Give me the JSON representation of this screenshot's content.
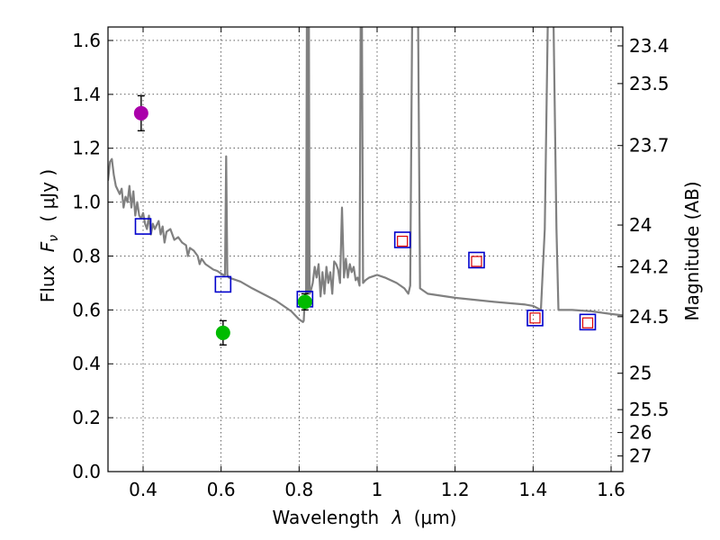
{
  "chart_data": {
    "type": "scatter",
    "xlabel_text": "Wavelength",
    "xlabel_symbol": "λ",
    "xlabel_unit": "(μm)",
    "ylabel_text": "Flux",
    "ylabel_symbol": "F",
    "ylabel_subscript": "ν",
    "ylabel_unit": "( μJy )",
    "y2label": "Magnitude (AB)",
    "xlim": [
      0.31,
      1.63
    ],
    "ylim": [
      0.0,
      1.65
    ],
    "grid": true,
    "x_ticks": [
      {
        "value": 0.4,
        "label": "0.4"
      },
      {
        "value": 0.6,
        "label": "0.6"
      },
      {
        "value": 0.8,
        "label": "0.8"
      },
      {
        "value": 1.0,
        "label": "1"
      },
      {
        "value": 1.2,
        "label": "1.2"
      },
      {
        "value": 1.4,
        "label": "1.4"
      },
      {
        "value": 1.6,
        "label": "1.6"
      }
    ],
    "y_ticks": [
      {
        "value": 0.0,
        "label": "0.0"
      },
      {
        "value": 0.2,
        "label": "0.2"
      },
      {
        "value": 0.4,
        "label": "0.4"
      },
      {
        "value": 0.6,
        "label": "0.6"
      },
      {
        "value": 0.8,
        "label": "0.8"
      },
      {
        "value": 1.0,
        "label": "1.0"
      },
      {
        "value": 1.2,
        "label": "1.2"
      },
      {
        "value": 1.4,
        "label": "1.4"
      },
      {
        "value": 1.6,
        "label": "1.6"
      }
    ],
    "y2_ticks": [
      {
        "flux": 1.58,
        "label": "23.4"
      },
      {
        "flux": 1.44,
        "label": "23.5"
      },
      {
        "flux": 1.21,
        "label": "23.7"
      },
      {
        "flux": 0.915,
        "label": "24"
      },
      {
        "flux": 0.76,
        "label": "24.2"
      },
      {
        "flux": 0.575,
        "label": "24.5"
      },
      {
        "flux": 0.365,
        "label": "25"
      },
      {
        "flux": 0.23,
        "label": "25.5"
      },
      {
        "flux": 0.145,
        "label": "26"
      },
      {
        "flux": 0.058,
        "label": "27"
      }
    ],
    "series": [
      {
        "name": "model_sed",
        "kind": "line",
        "color": "#808080",
        "points": [
          [
            0.31,
            1.08
          ],
          [
            0.315,
            1.15
          ],
          [
            0.32,
            1.16
          ],
          [
            0.325,
            1.1
          ],
          [
            0.33,
            1.06
          ],
          [
            0.34,
            1.03
          ],
          [
            0.345,
            1.05
          ],
          [
            0.35,
            0.98
          ],
          [
            0.355,
            1.02
          ],
          [
            0.36,
            1.0
          ],
          [
            0.365,
            1.06
          ],
          [
            0.37,
            0.98
          ],
          [
            0.375,
            1.04
          ],
          [
            0.38,
            0.95
          ],
          [
            0.385,
            1.0
          ],
          [
            0.39,
            0.95
          ],
          [
            0.395,
            0.94
          ],
          [
            0.4,
            0.96
          ],
          [
            0.405,
            0.92
          ],
          [
            0.41,
            0.9
          ],
          [
            0.415,
            0.95
          ],
          [
            0.42,
            0.88
          ],
          [
            0.425,
            0.92
          ],
          [
            0.43,
            0.9
          ],
          [
            0.44,
            0.93
          ],
          [
            0.445,
            0.88
          ],
          [
            0.45,
            0.91
          ],
          [
            0.455,
            0.85
          ],
          [
            0.46,
            0.89
          ],
          [
            0.47,
            0.9
          ],
          [
            0.48,
            0.86
          ],
          [
            0.49,
            0.87
          ],
          [
            0.5,
            0.85
          ],
          [
            0.51,
            0.84
          ],
          [
            0.515,
            0.8
          ],
          [
            0.52,
            0.83
          ],
          [
            0.53,
            0.82
          ],
          [
            0.54,
            0.8
          ],
          [
            0.545,
            0.77
          ],
          [
            0.55,
            0.79
          ],
          [
            0.56,
            0.77
          ],
          [
            0.57,
            0.76
          ],
          [
            0.58,
            0.75
          ],
          [
            0.59,
            0.745
          ],
          [
            0.6,
            0.735
          ],
          [
            0.605,
            0.73
          ],
          [
            0.61,
            0.73
          ],
          [
            0.613,
            1.17
          ],
          [
            0.616,
            0.73
          ],
          [
            0.62,
            0.72
          ],
          [
            0.65,
            0.705
          ],
          [
            0.68,
            0.68
          ],
          [
            0.7,
            0.665
          ],
          [
            0.72,
            0.65
          ],
          [
            0.74,
            0.635
          ],
          [
            0.76,
            0.615
          ],
          [
            0.78,
            0.595
          ],
          [
            0.79,
            0.58
          ],
          [
            0.8,
            0.565
          ],
          [
            0.805,
            0.56
          ],
          [
            0.81,
            0.555
          ],
          [
            0.812,
            0.56
          ],
          [
            0.815,
            0.65
          ],
          [
            0.818,
            0.66
          ],
          [
            0.82,
            1.7
          ],
          [
            0.822,
            0.66
          ],
          [
            0.825,
            1.7
          ],
          [
            0.827,
            0.66
          ],
          [
            0.83,
            0.67
          ],
          [
            0.835,
            0.7
          ],
          [
            0.84,
            0.76
          ],
          [
            0.845,
            0.72
          ],
          [
            0.85,
            0.77
          ],
          [
            0.855,
            0.65
          ],
          [
            0.86,
            0.74
          ],
          [
            0.865,
            0.66
          ],
          [
            0.87,
            0.76
          ],
          [
            0.875,
            0.7
          ],
          [
            0.88,
            0.74
          ],
          [
            0.885,
            0.66
          ],
          [
            0.89,
            0.78
          ],
          [
            0.895,
            0.77
          ],
          [
            0.9,
            0.75
          ],
          [
            0.905,
            0.7
          ],
          [
            0.91,
            0.98
          ],
          [
            0.915,
            0.72
          ],
          [
            0.92,
            0.79
          ],
          [
            0.925,
            0.72
          ],
          [
            0.93,
            0.77
          ],
          [
            0.935,
            0.74
          ],
          [
            0.94,
            0.76
          ],
          [
            0.945,
            0.71
          ],
          [
            0.95,
            0.72
          ],
          [
            0.955,
            0.69
          ],
          [
            0.958,
            1.7
          ],
          [
            0.961,
            1.7
          ],
          [
            0.964,
            0.7
          ],
          [
            0.97,
            0.71
          ],
          [
            0.98,
            0.72
          ],
          [
            1.0,
            0.73
          ],
          [
            1.02,
            0.72
          ],
          [
            1.05,
            0.7
          ],
          [
            1.07,
            0.68
          ],
          [
            1.08,
            0.66
          ],
          [
            1.085,
            0.69
          ],
          [
            1.09,
            1.7
          ],
          [
            1.095,
            1.7
          ],
          [
            1.1,
            1.7
          ],
          [
            1.105,
            1.7
          ],
          [
            1.11,
            0.68
          ],
          [
            1.13,
            0.66
          ],
          [
            1.2,
            0.645
          ],
          [
            1.3,
            0.63
          ],
          [
            1.38,
            0.62
          ],
          [
            1.4,
            0.615
          ],
          [
            1.42,
            0.6
          ],
          [
            1.43,
            0.9
          ],
          [
            1.438,
            1.7
          ],
          [
            1.452,
            1.7
          ],
          [
            1.46,
            0.9
          ],
          [
            1.465,
            0.6
          ],
          [
            1.5,
            0.6
          ],
          [
            1.55,
            0.595
          ],
          [
            1.6,
            0.585
          ],
          [
            1.63,
            0.58
          ]
        ]
      },
      {
        "name": "model_photometry",
        "kind": "square",
        "color": "#0000cc",
        "points": [
          [
            0.4,
            0.91
          ],
          [
            0.605,
            0.695
          ],
          [
            0.815,
            0.64
          ],
          [
            1.065,
            0.86
          ],
          [
            1.255,
            0.785
          ],
          [
            1.405,
            0.57
          ],
          [
            1.54,
            0.555
          ]
        ]
      },
      {
        "name": "red_markers",
        "kind": "small-square",
        "color": "#dd0000",
        "points": [
          [
            1.065,
            0.855
          ],
          [
            1.255,
            0.78
          ],
          [
            1.405,
            0.57
          ],
          [
            1.54,
            0.552
          ]
        ]
      },
      {
        "name": "magenta_detection",
        "kind": "circle",
        "color": "#aa00aa",
        "points": [
          [
            0.395,
            1.33
          ]
        ],
        "errors": [
          0.065
        ]
      },
      {
        "name": "green_detections",
        "kind": "circle",
        "color": "#00bb00",
        "points": [
          [
            0.605,
            0.515
          ],
          [
            0.815,
            0.63
          ]
        ],
        "errors": [
          0.045,
          0.03
        ]
      }
    ]
  }
}
